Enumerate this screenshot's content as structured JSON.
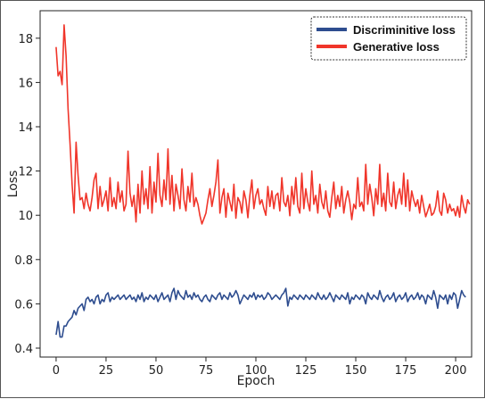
{
  "chart_data": {
    "type": "line",
    "title": "",
    "xlabel": "Epoch",
    "ylabel": "Loss",
    "xlim": [
      -8,
      208
    ],
    "ylim": [
      0.4,
      18.7
    ],
    "x_ticks": [
      0,
      25,
      50,
      75,
      100,
      125,
      150,
      175,
      200
    ],
    "x_tick_labels": [
      "0",
      "25",
      "50",
      "75",
      "100",
      "125",
      "150",
      "175",
      "200"
    ],
    "y_ticks": [
      0.4,
      0.6,
      0.8,
      10,
      12,
      14,
      16,
      18
    ],
    "y_tick_labels": [
      "0.4",
      "0.6",
      "0.8",
      "10",
      "12",
      "14",
      "16",
      "18"
    ],
    "grid": false,
    "legend_position": "top-right",
    "series": [
      {
        "name": "Discriminitive loss",
        "color": "#2e4d8f",
        "x_start": 0,
        "x_step": 1,
        "values": [
          0.46,
          0.52,
          0.45,
          0.45,
          0.5,
          0.5,
          0.52,
          0.53,
          0.54,
          0.57,
          0.55,
          0.58,
          0.59,
          0.6,
          0.57,
          0.62,
          0.63,
          0.61,
          0.62,
          0.6,
          0.63,
          0.64,
          0.6,
          0.62,
          0.61,
          0.64,
          0.65,
          0.61,
          0.63,
          0.62,
          0.63,
          0.64,
          0.62,
          0.63,
          0.64,
          0.62,
          0.63,
          0.64,
          0.62,
          0.63,
          0.61,
          0.64,
          0.62,
          0.65,
          0.61,
          0.63,
          0.62,
          0.64,
          0.63,
          0.62,
          0.64,
          0.61,
          0.63,
          0.65,
          0.62,
          0.63,
          0.64,
          0.61,
          0.65,
          0.67,
          0.62,
          0.66,
          0.64,
          0.63,
          0.62,
          0.66,
          0.63,
          0.64,
          0.62,
          0.65,
          0.63,
          0.64,
          0.62,
          0.61,
          0.63,
          0.64,
          0.62,
          0.61,
          0.64,
          0.63,
          0.62,
          0.64,
          0.65,
          0.62,
          0.64,
          0.63,
          0.62,
          0.65,
          0.63,
          0.64,
          0.66,
          0.64,
          0.6,
          0.62,
          0.64,
          0.63,
          0.62,
          0.64,
          0.63,
          0.65,
          0.62,
          0.64,
          0.63,
          0.64,
          0.62,
          0.63,
          0.65,
          0.64,
          0.62,
          0.63,
          0.64,
          0.63,
          0.62,
          0.64,
          0.65,
          0.67,
          0.59,
          0.63,
          0.62,
          0.64,
          0.63,
          0.62,
          0.64,
          0.63,
          0.62,
          0.64,
          0.63,
          0.62,
          0.64,
          0.63,
          0.62,
          0.65,
          0.63,
          0.62,
          0.64,
          0.62,
          0.63,
          0.65,
          0.63,
          0.61,
          0.64,
          0.63,
          0.62,
          0.64,
          0.63,
          0.62,
          0.65,
          0.6,
          0.63,
          0.62,
          0.64,
          0.63,
          0.62,
          0.64,
          0.63,
          0.6,
          0.65,
          0.63,
          0.62,
          0.64,
          0.63,
          0.62,
          0.66,
          0.63,
          0.61,
          0.63,
          0.64,
          0.62,
          0.63,
          0.65,
          0.61,
          0.63,
          0.64,
          0.62,
          0.63,
          0.65,
          0.61,
          0.63,
          0.64,
          0.62,
          0.63,
          0.65,
          0.62,
          0.64,
          0.63,
          0.6,
          0.64,
          0.63,
          0.62,
          0.66,
          0.63,
          0.58,
          0.64,
          0.63,
          0.62,
          0.64,
          0.6,
          0.64,
          0.62,
          0.65,
          0.64,
          0.58,
          0.62,
          0.66,
          0.64,
          0.63
        ]
      },
      {
        "name": "Generative loss",
        "color": "#f0352a",
        "x_start": 0,
        "x_step": 1,
        "values": [
          17.6,
          16.3,
          16.5,
          15.9,
          18.6,
          17.2,
          14.8,
          13.2,
          11.4,
          10.1,
          13.3,
          11.8,
          10.7,
          10.8,
          10.3,
          11.0,
          10.5,
          10.2,
          10.8,
          11.6,
          11.9,
          10.3,
          11.3,
          10.4,
          10.7,
          11.1,
          10.2,
          11.7,
          10.4,
          10.8,
          10.3,
          11.5,
          10.6,
          11.1,
          10.2,
          10.5,
          12.9,
          11.0,
          10.4,
          10.9,
          8.6,
          11.4,
          10.1,
          12.0,
          10.5,
          11.2,
          10.3,
          12.2,
          10.1,
          11.5,
          10.6,
          12.8,
          10.9,
          10.4,
          11.6,
          10.7,
          13.0,
          10.5,
          11.8,
          10.2,
          11.4,
          10.9,
          10.3,
          12.1,
          10.7,
          10.2,
          11.3,
          10.6,
          11.9,
          10.4,
          10.8,
          10.5,
          9.9,
          8.2,
          9.3,
          10.1,
          10.7,
          11.2,
          10.4,
          10.9,
          11.5,
          12.5,
          10.1,
          10.8,
          11.2,
          9.6,
          11.0,
          10.6,
          10.2,
          11.4,
          9.4,
          10.8,
          10.6,
          10.1,
          11.1,
          10.7,
          9.5,
          10.9,
          11.6,
          10.3,
          10.9,
          11.2,
          10.5,
          10.7,
          10.3,
          10.0,
          11.3,
          10.4,
          11.1,
          10.3,
          10.9,
          11.0,
          10.2,
          11.7,
          10.6,
          10.4,
          10.9,
          9.9,
          11.3,
          10.5,
          11.7,
          10.4,
          10.1,
          11.9,
          10.3,
          11.2,
          10.6,
          10.2,
          12.0,
          10.5,
          10.9,
          10.1,
          11.4,
          10.6,
          10.3,
          11.1,
          10.2,
          9.6,
          10.8,
          11.5,
          10.3,
          10.9,
          10.4,
          11.3,
          10.1,
          10.7,
          11.1,
          10.6,
          9.1,
          10.5,
          10.3,
          11.7,
          10.4,
          10.6,
          10.2,
          12.3,
          10.5,
          11.4,
          10.8,
          9.9,
          11.2,
          10.5,
          12.3,
          10.4,
          11.0,
          10.2,
          11.9,
          10.6,
          10.4,
          11.5,
          10.3,
          10.9,
          11.2,
          10.5,
          11.9,
          10.4,
          11.6,
          10.2,
          11.1,
          10.7,
          10.4,
          10.7,
          10.1,
          10.9,
          10.4,
          9.7,
          10.2,
          10.5,
          10.0,
          10.1,
          10.4,
          11.1,
          10.2,
          10.0,
          11.0,
          10.7,
          10.1,
          10.5,
          10.2,
          10.3,
          9.9,
          10.4,
          9.6,
          10.9,
          10.4,
          10.1,
          10.7,
          10.5
        ]
      }
    ]
  }
}
